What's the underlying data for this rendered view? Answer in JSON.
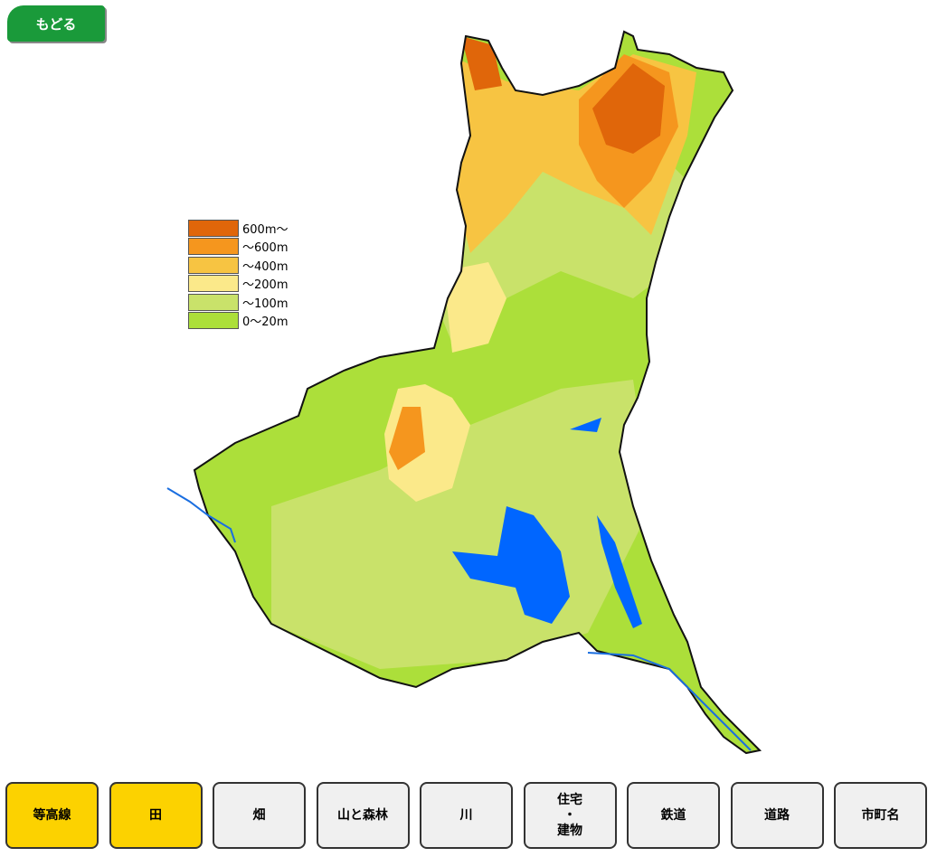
{
  "back_button": {
    "label": "もどる"
  },
  "legend": [
    {
      "label": "600m〜",
      "color": "#e0660a"
    },
    {
      "label": "〜600m",
      "color": "#f5961e"
    },
    {
      "label": "〜400m",
      "color": "#f7c442"
    },
    {
      "label": "〜200m",
      "color": "#fbe98a"
    },
    {
      "label": "〜100m",
      "color": "#c9e26a"
    },
    {
      "label": "0〜20m",
      "color": "#acdf3a"
    }
  ],
  "buttons": [
    {
      "label": "等高線",
      "active": true
    },
    {
      "label": "田",
      "active": true
    },
    {
      "label": "畑",
      "active": false
    },
    {
      "label": "山と森林",
      "active": false
    },
    {
      "label": "川",
      "active": false
    },
    {
      "lines": [
        "住宅",
        "・",
        "建物"
      ],
      "active": false
    },
    {
      "label": "鉄道",
      "active": false
    },
    {
      "label": "道路",
      "active": false
    },
    {
      "label": "市町名",
      "active": false
    }
  ]
}
